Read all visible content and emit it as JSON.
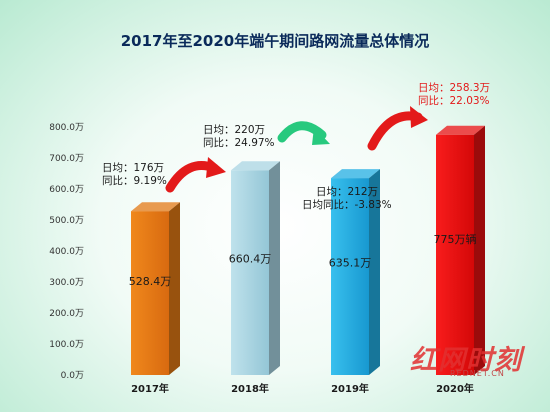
{
  "chart_data": {
    "type": "bar",
    "title": "2017年至2020年端午期间路网流量总体情况",
    "categories": [
      "2017年",
      "2018年",
      "2019年",
      "2020年"
    ],
    "values": [
      528.4,
      660.4,
      635.1,
      775
    ],
    "bar_labels": [
      "528.4万",
      "660.4万",
      "635.1万",
      "775万辆"
    ],
    "colors": [
      "#e07814",
      "#a8d4e2",
      "#22aee2",
      "#e41010"
    ],
    "ylim": [
      0,
      800
    ],
    "y_ticks": [
      "0.0万",
      "100.0万",
      "200.0万",
      "300.0万",
      "400.0万",
      "500.0万",
      "600.0万",
      "700.0万",
      "800.0万"
    ],
    "xlabel": "",
    "ylabel": "",
    "grid": false,
    "annotations": [
      {
        "lines": [
          "日均：176万",
          "同比：9.19%"
        ]
      },
      {
        "lines": [
          "日均：220万",
          "同比：24.97%"
        ]
      },
      {
        "lines": [
          "日均：212万",
          "日均同比：-3.83%"
        ]
      },
      {
        "lines": [
          "日均：258.3万",
          "同比：22.03%"
        ]
      }
    ]
  },
  "watermark": {
    "brand": "红网时刻",
    "site": "REDNET.CN"
  }
}
